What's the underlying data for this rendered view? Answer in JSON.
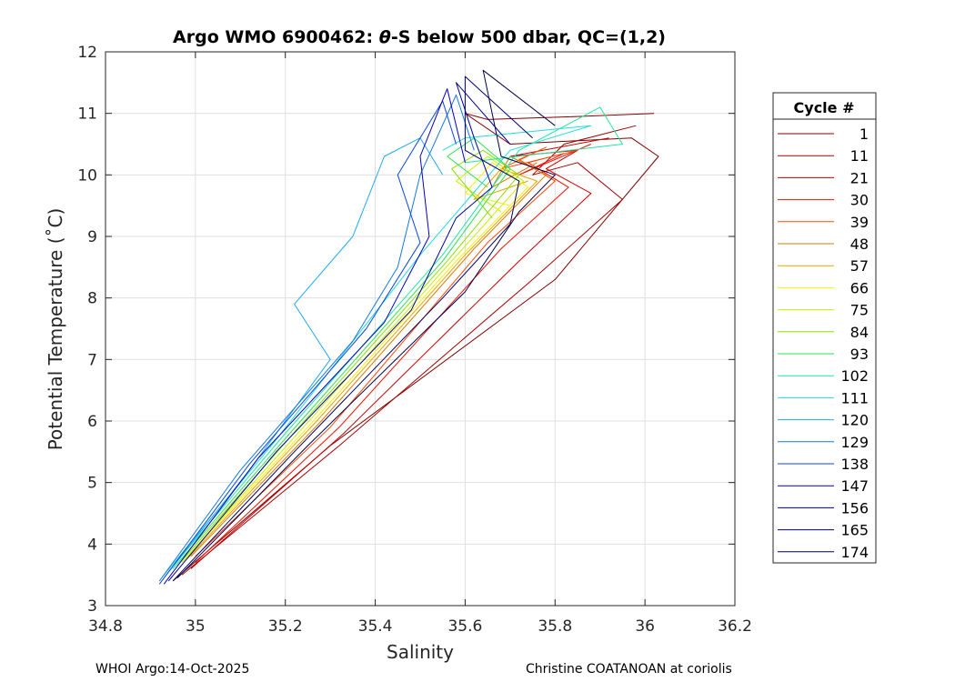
{
  "chart_data": {
    "type": "line",
    "title_parts": [
      "Argo WMO 6900462: ",
      "θ",
      "-S below 500 dbar,  QC=(1,2)"
    ],
    "xlabel": "Salinity",
    "ylabel": "Potential Temperature (˚C)",
    "xlim": [
      34.8,
      36.2
    ],
    "ylim": [
      3,
      12
    ],
    "xticks": [
      34.8,
      35,
      35.2,
      35.4,
      35.6,
      35.8,
      36,
      36.2
    ],
    "xtick_labels": [
      "34.8",
      "35",
      "35.2",
      "35.4",
      "35.6",
      "35.8",
      "36",
      "36.2"
    ],
    "yticks": [
      3,
      4,
      5,
      6,
      7,
      8,
      9,
      10,
      11,
      12
    ],
    "ytick_labels": [
      "3",
      "4",
      "5",
      "6",
      "7",
      "8",
      "9",
      "10",
      "11",
      "12"
    ],
    "grid": true,
    "legend_position": "outside-right",
    "legend_title": "Cycle #",
    "series": [
      {
        "name": "1",
        "color": "#800000",
        "points": [
          [
            34.95,
            3.4
          ],
          [
            35.3,
            5.6
          ],
          [
            35.8,
            8.3
          ],
          [
            36.03,
            10.3
          ],
          [
            35.97,
            10.6
          ],
          [
            35.7,
            10.5
          ],
          [
            35.6,
            11.0
          ],
          [
            35.65,
            10.9
          ],
          [
            35.85,
            10.95
          ],
          [
            36.02,
            11.0
          ]
        ]
      },
      {
        "name": "11",
        "color": "#a00000",
        "points": [
          [
            34.97,
            3.5
          ],
          [
            35.32,
            5.6
          ],
          [
            35.75,
            8.3
          ],
          [
            35.95,
            9.6
          ],
          [
            35.85,
            10.2
          ],
          [
            35.75,
            10.0
          ],
          [
            35.82,
            10.5
          ],
          [
            35.98,
            10.8
          ]
        ]
      },
      {
        "name": "21",
        "color": "#c80000",
        "points": [
          [
            34.99,
            3.6
          ],
          [
            35.33,
            5.8
          ],
          [
            35.72,
            8.6
          ],
          [
            35.88,
            9.7
          ],
          [
            35.78,
            10.1
          ],
          [
            35.85,
            10.4
          ],
          [
            35.7,
            10.3
          ],
          [
            35.92,
            10.6
          ]
        ]
      },
      {
        "name": "30",
        "color": "#ee1000",
        "points": [
          [
            35.0,
            3.7
          ],
          [
            35.32,
            5.9
          ],
          [
            35.68,
            8.8
          ],
          [
            35.83,
            9.8
          ],
          [
            35.74,
            10.2
          ],
          [
            35.82,
            10.35
          ],
          [
            35.72,
            10.0
          ],
          [
            35.88,
            10.5
          ]
        ]
      },
      {
        "name": "39",
        "color": "#ff4a00",
        "points": [
          [
            35.0,
            3.8
          ],
          [
            35.3,
            5.9
          ],
          [
            35.65,
            8.9
          ],
          [
            35.8,
            9.9
          ],
          [
            35.72,
            10.25
          ],
          [
            35.78,
            10.45
          ],
          [
            35.68,
            10.1
          ],
          [
            35.85,
            10.4
          ]
        ]
      },
      {
        "name": "48",
        "color": "#d97a00",
        "points": [
          [
            34.99,
            3.8
          ],
          [
            35.28,
            6.0
          ],
          [
            35.62,
            8.8
          ],
          [
            35.78,
            10.0
          ],
          [
            35.7,
            10.3
          ],
          [
            35.66,
            9.8
          ],
          [
            35.76,
            10.2
          ]
        ]
      },
      {
        "name": "57",
        "color": "#e6a500",
        "points": [
          [
            34.98,
            3.75
          ],
          [
            35.27,
            6.0
          ],
          [
            35.6,
            8.7
          ],
          [
            35.76,
            9.9
          ],
          [
            35.68,
            10.1
          ],
          [
            35.62,
            9.6
          ],
          [
            35.74,
            9.9
          ]
        ]
      },
      {
        "name": "66",
        "color": "#ffee00",
        "points": [
          [
            34.97,
            3.7
          ],
          [
            35.25,
            5.9
          ],
          [
            35.58,
            8.6
          ],
          [
            35.74,
            9.8
          ],
          [
            35.66,
            10.2
          ],
          [
            35.6,
            9.7
          ],
          [
            35.7,
            9.5
          ]
        ]
      },
      {
        "name": "75",
        "color": "#c8f000",
        "points": [
          [
            34.97,
            3.7
          ],
          [
            35.24,
            5.9
          ],
          [
            35.57,
            8.6
          ],
          [
            35.73,
            9.9
          ],
          [
            35.65,
            10.3
          ],
          [
            35.58,
            9.9
          ],
          [
            35.68,
            9.4
          ]
        ]
      },
      {
        "name": "84",
        "color": "#8ce000",
        "points": [
          [
            34.96,
            3.65
          ],
          [
            35.23,
            5.9
          ],
          [
            35.56,
            8.6
          ],
          [
            35.72,
            10.0
          ],
          [
            35.64,
            10.4
          ],
          [
            35.57,
            10.1
          ],
          [
            35.66,
            9.3
          ]
        ]
      },
      {
        "name": "93",
        "color": "#2ee050",
        "points": [
          [
            34.95,
            3.6
          ],
          [
            35.21,
            5.8
          ],
          [
            35.55,
            8.6
          ],
          [
            35.7,
            10.1
          ],
          [
            35.62,
            10.6
          ],
          [
            35.56,
            10.3
          ],
          [
            35.65,
            9.8
          ]
        ]
      },
      {
        "name": "102",
        "color": "#1ee6a0",
        "points": [
          [
            34.94,
            3.55
          ],
          [
            35.2,
            5.8
          ],
          [
            35.55,
            8.7
          ],
          [
            35.72,
            10.4
          ],
          [
            35.9,
            11.1
          ],
          [
            35.95,
            10.5
          ],
          [
            35.6,
            10.2
          ]
        ]
      },
      {
        "name": "111",
        "color": "#22dcdc",
        "points": [
          [
            34.93,
            3.5
          ],
          [
            35.18,
            5.7
          ],
          [
            35.5,
            8.7
          ],
          [
            35.7,
            10.4
          ],
          [
            35.88,
            10.8
          ],
          [
            35.6,
            10.6
          ],
          [
            35.55,
            10.4
          ]
        ]
      },
      {
        "name": "120",
        "color": "#1eaaf0",
        "points": [
          [
            34.93,
            3.45
          ],
          [
            35.12,
            5.2
          ],
          [
            35.3,
            7.0
          ],
          [
            35.22,
            7.9
          ],
          [
            35.35,
            9.0
          ],
          [
            35.42,
            10.3
          ],
          [
            35.5,
            10.6
          ],
          [
            35.55,
            10.0
          ]
        ]
      },
      {
        "name": "129",
        "color": "#1478dc",
        "points": [
          [
            34.92,
            3.4
          ],
          [
            35.1,
            5.2
          ],
          [
            35.35,
            7.3
          ],
          [
            35.45,
            8.5
          ],
          [
            35.5,
            10.0
          ],
          [
            35.58,
            11.3
          ],
          [
            35.62,
            10.4
          ]
        ]
      },
      {
        "name": "138",
        "color": "#0a46dc",
        "points": [
          [
            34.92,
            3.35
          ],
          [
            35.12,
            5.3
          ],
          [
            35.38,
            7.5
          ],
          [
            35.5,
            8.9
          ],
          [
            35.45,
            10.0
          ],
          [
            35.55,
            11.2
          ],
          [
            35.58,
            10.5
          ]
        ]
      },
      {
        "name": "147",
        "color": "#0000c8",
        "points": [
          [
            34.93,
            3.35
          ],
          [
            35.14,
            5.4
          ],
          [
            35.42,
            7.6
          ],
          [
            35.52,
            9.0
          ],
          [
            35.5,
            10.3
          ],
          [
            35.56,
            11.4
          ],
          [
            35.6,
            10.2
          ]
        ]
      },
      {
        "name": "156",
        "color": "#000096",
        "points": [
          [
            34.94,
            3.4
          ],
          [
            35.18,
            5.5
          ],
          [
            35.48,
            7.8
          ],
          [
            35.58,
            9.3
          ],
          [
            35.66,
            9.8
          ],
          [
            35.62,
            10.6
          ],
          [
            35.58,
            11.5
          ],
          [
            35.7,
            10.5
          ]
        ]
      },
      {
        "name": "165",
        "color": "#00006e",
        "points": [
          [
            34.95,
            3.4
          ],
          [
            35.22,
            5.5
          ],
          [
            35.55,
            8.0
          ],
          [
            35.7,
            9.2
          ],
          [
            35.72,
            9.9
          ],
          [
            35.6,
            10.4
          ],
          [
            35.6,
            11.6
          ],
          [
            35.75,
            10.6
          ]
        ]
      },
      {
        "name": "174",
        "color": "#00004b",
        "points": [
          [
            34.96,
            3.45
          ],
          [
            35.25,
            5.6
          ],
          [
            35.6,
            8.1
          ],
          [
            35.72,
            9.4
          ],
          [
            35.8,
            10.0
          ],
          [
            35.68,
            10.3
          ],
          [
            35.64,
            11.7
          ],
          [
            35.8,
            10.8
          ]
        ]
      }
    ]
  },
  "footer": {
    "left": "WHOI Argo:14-Oct-2025",
    "right": "Christine COATANOAN at coriolis"
  }
}
